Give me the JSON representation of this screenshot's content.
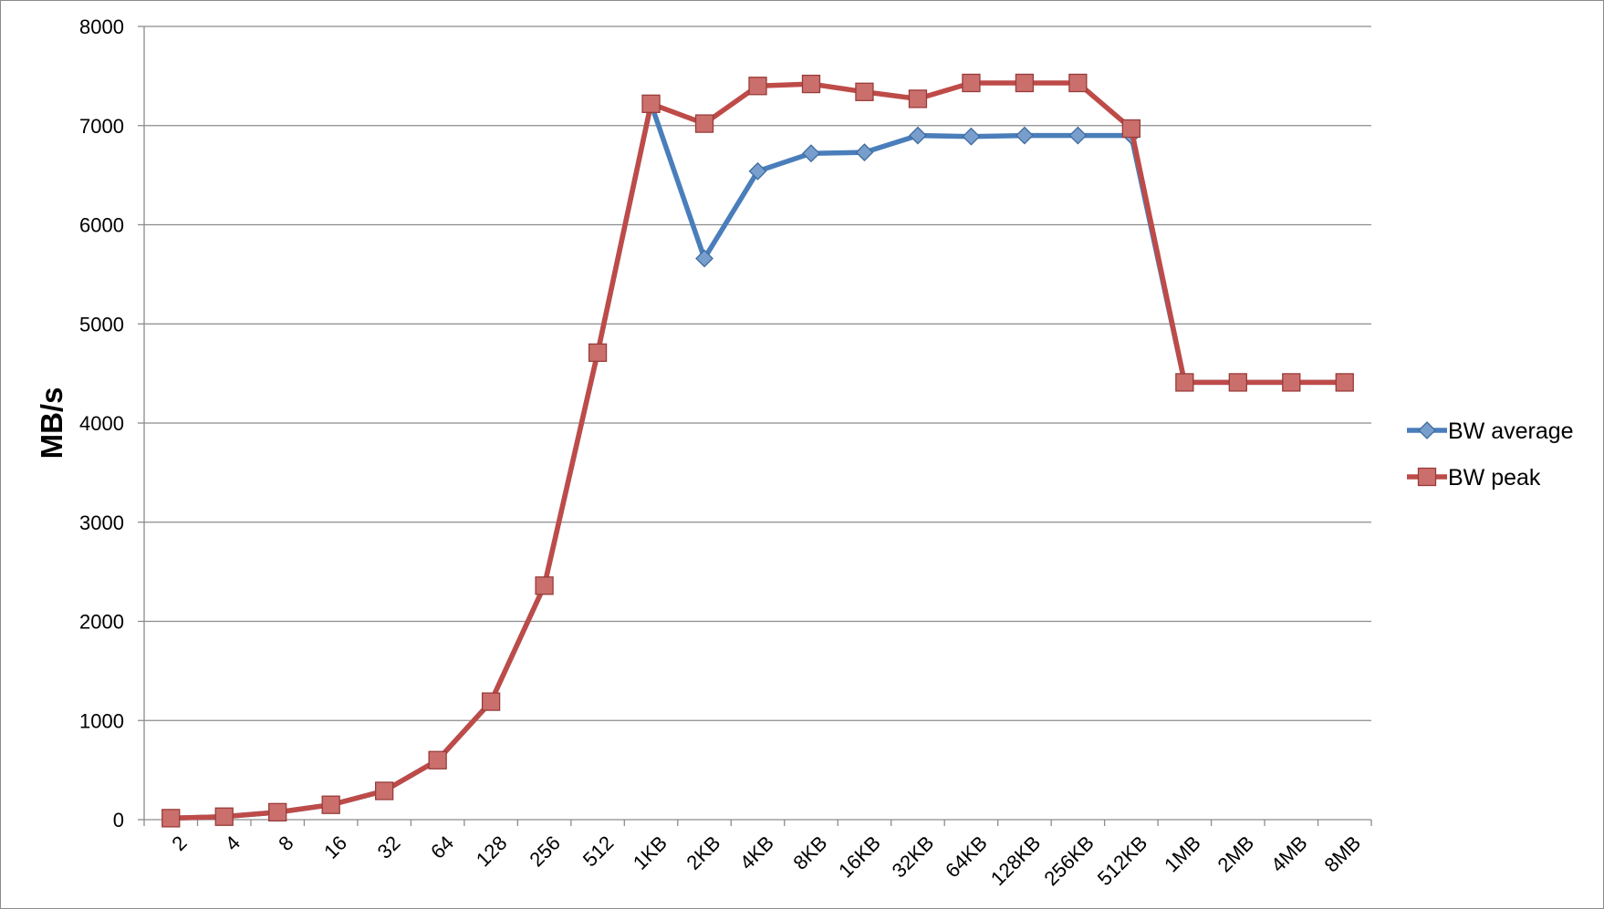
{
  "chart_data": {
    "type": "line",
    "title": "",
    "xlabel": "",
    "ylabel": "MB/s",
    "ylim": [
      0,
      8000
    ],
    "yticks": [
      0,
      1000,
      2000,
      3000,
      4000,
      5000,
      6000,
      7000,
      8000
    ],
    "grid": true,
    "legend_position": "right",
    "categories": [
      "2",
      "4",
      "8",
      "16",
      "32",
      "64",
      "128",
      "256",
      "512",
      "1KB",
      "2KB",
      "4KB",
      "8KB",
      "16KB",
      "32KB",
      "64KB",
      "128KB",
      "256KB",
      "512KB",
      "1MB",
      "2MB",
      "4MB",
      "8MB"
    ],
    "series": [
      {
        "name": "BW average",
        "color": "#4a7ebb",
        "marker": "diamond",
        "values": [
          15,
          30,
          75,
          150,
          290,
          600,
          1190,
          2360,
          4710,
          7220,
          5660,
          6540,
          6720,
          6730,
          6900,
          6890,
          6900,
          6900,
          6900,
          4410,
          4410,
          4410,
          4410
        ]
      },
      {
        "name": "BW peak",
        "color": "#be4b48",
        "marker": "square",
        "values": [
          15,
          30,
          75,
          150,
          290,
          600,
          1190,
          2360,
          4710,
          7220,
          7020,
          7400,
          7420,
          7340,
          7270,
          7430,
          7430,
          7430,
          6970,
          4410,
          4410,
          4410,
          4410
        ]
      }
    ]
  }
}
